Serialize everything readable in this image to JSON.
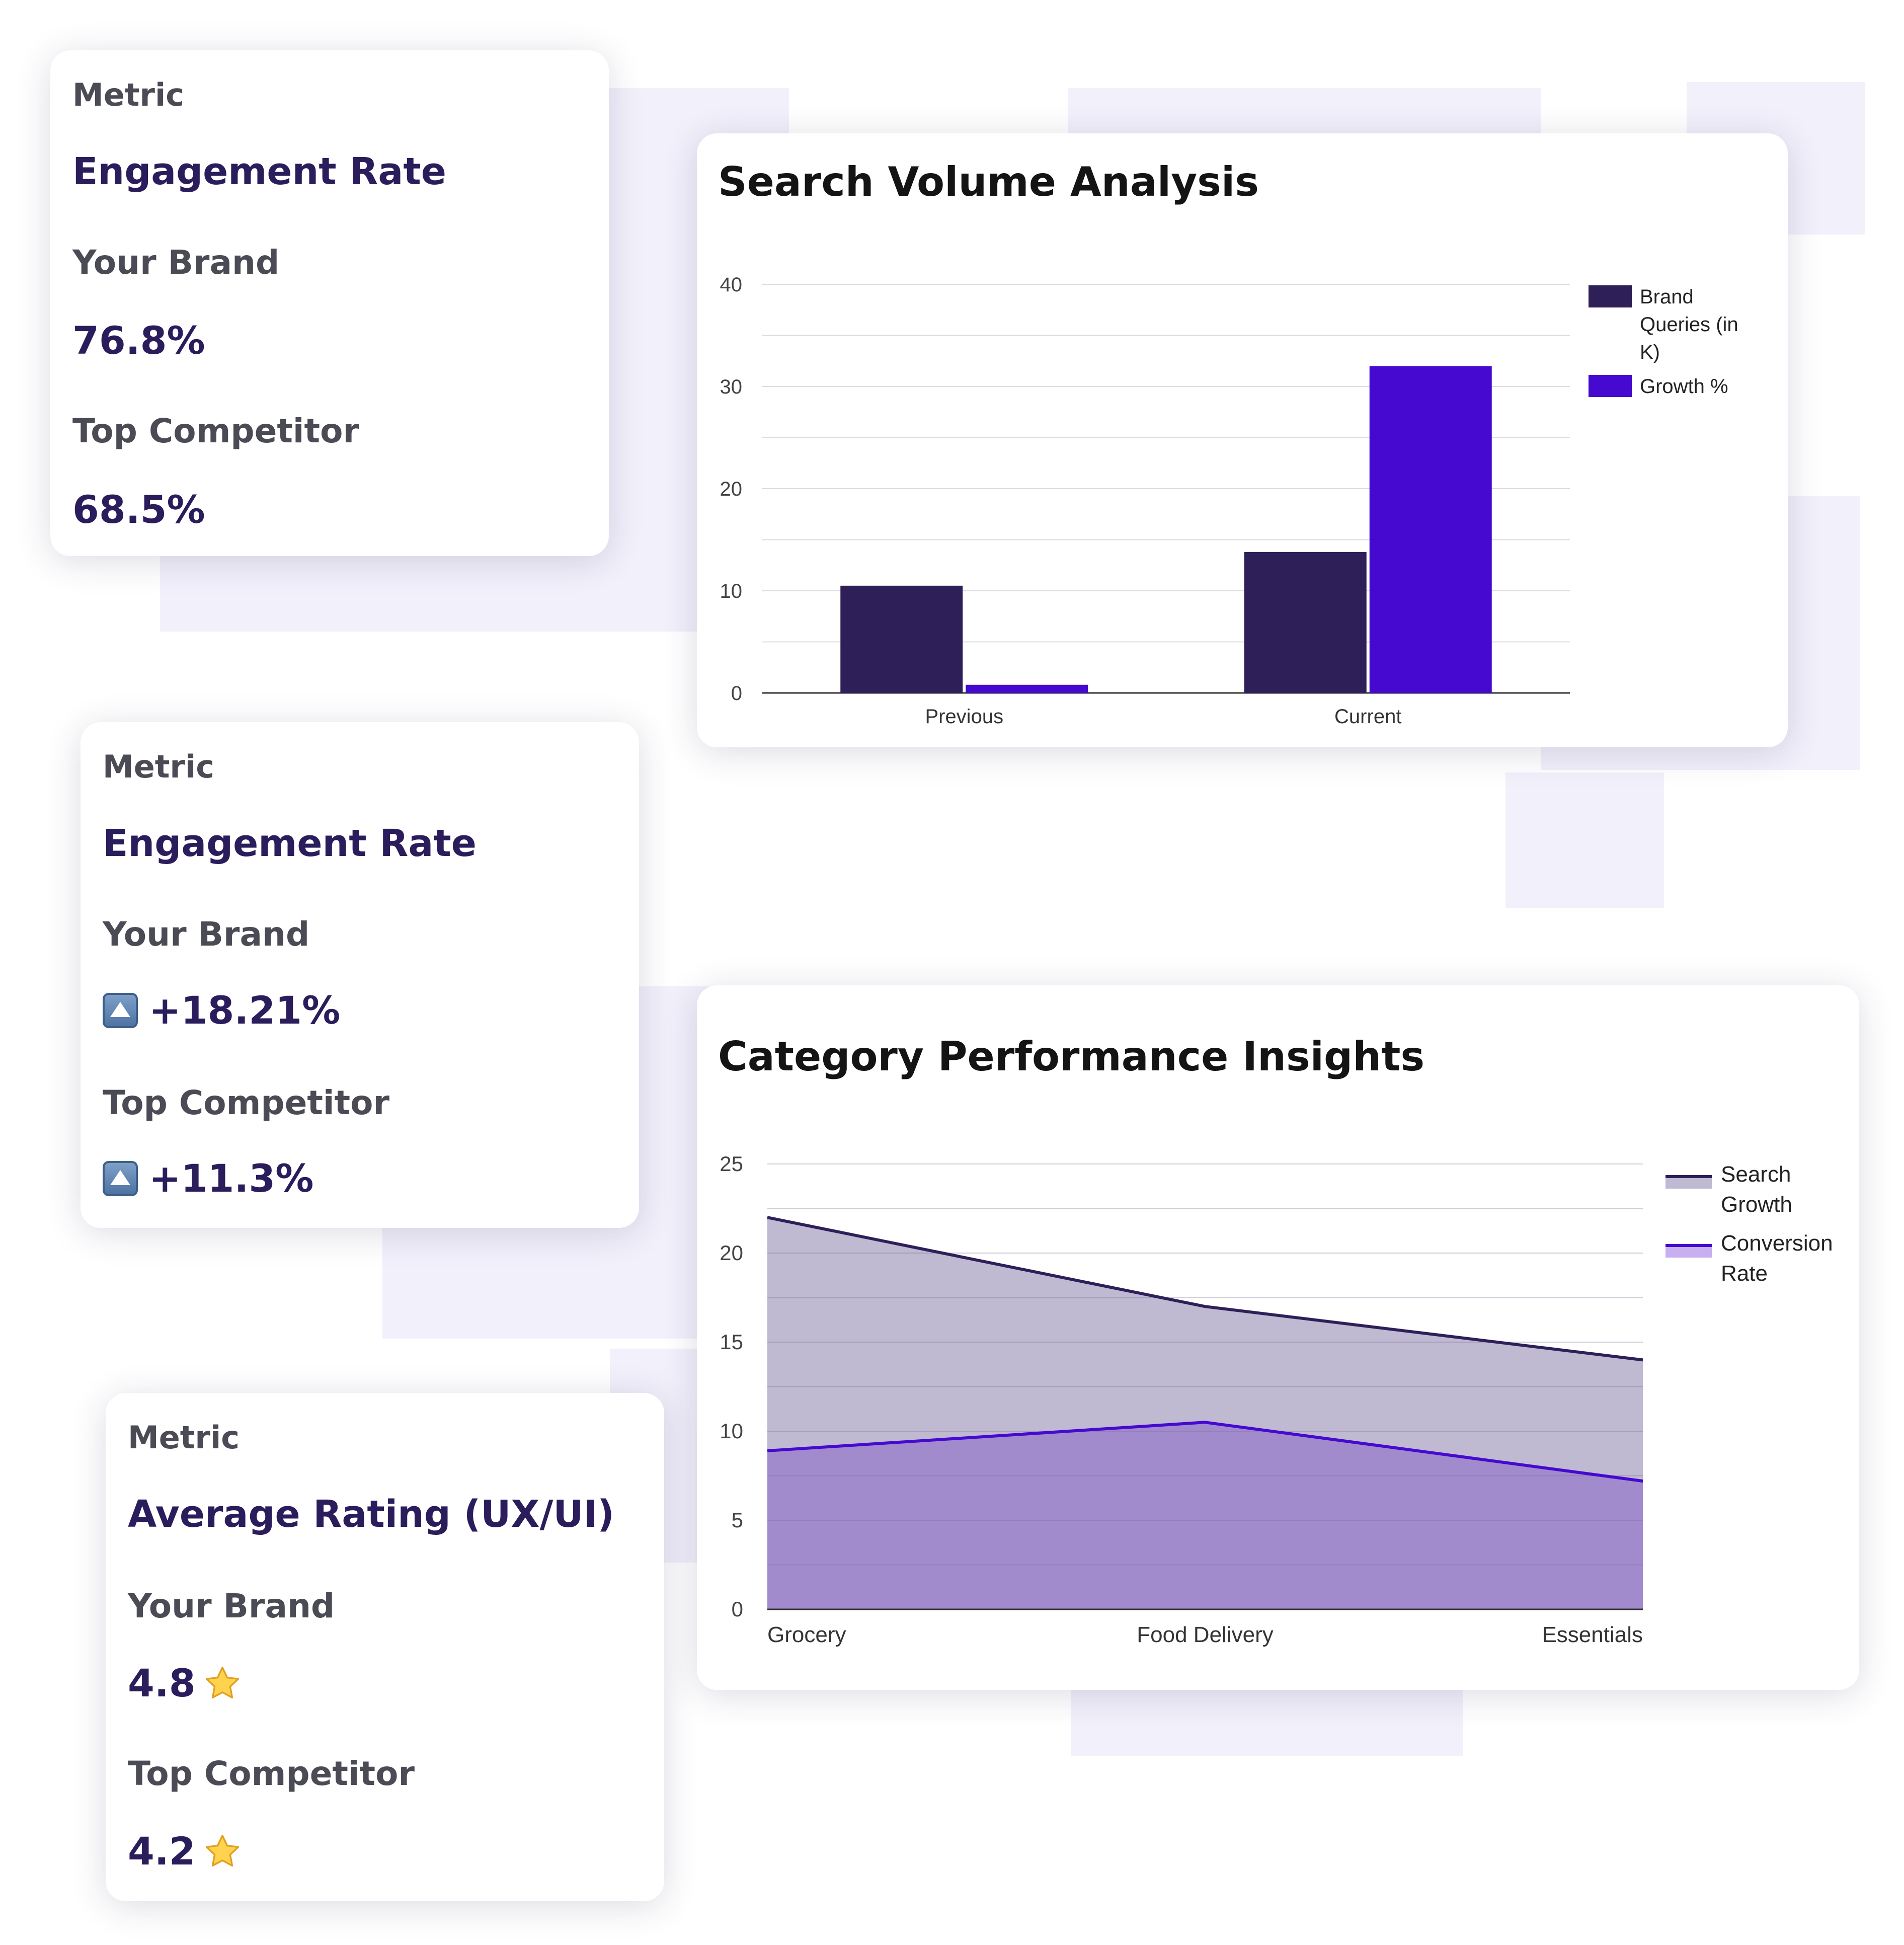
{
  "cards": [
    {
      "metric_label": "Metric",
      "title": "Engagement Rate",
      "brand_label": "Your Brand",
      "brand_value": "76.8%",
      "competitor_label": "Top Competitor",
      "competitor_value": "68.5%"
    },
    {
      "metric_label": "Metric",
      "title": "Engagement Rate",
      "brand_label": "Your Brand",
      "brand_value": "+18.21%",
      "competitor_label": "Top Competitor",
      "competitor_value": "+11.3%",
      "value_icon": "up-arrow-button-icon"
    },
    {
      "metric_label": "Metric",
      "title": "Average Rating (UX/UI)",
      "brand_label": "Your Brand",
      "brand_value": "4.8",
      "competitor_label": "Top Competitor",
      "competitor_value": "4.2",
      "value_icon": "star-icon"
    }
  ],
  "chart_data": [
    {
      "type": "bar",
      "title": "Search Volume Analysis",
      "categories": [
        "Previous",
        "Current"
      ],
      "series": [
        {
          "name": "Brand Queries (in K)",
          "values": [
            10.5,
            13.8
          ],
          "color": "#2e1f59"
        },
        {
          "name": "Growth %",
          "values": [
            0.8,
            32
          ],
          "color": "#4509d0"
        }
      ],
      "y_ticks": [
        "0",
        "10",
        "20",
        "30",
        "40"
      ],
      "ylim": [
        0,
        40
      ],
      "legend": {
        "position": "right",
        "entries": [
          "Brand",
          "Queries (in",
          "K)",
          "Growth %"
        ]
      },
      "grid": true
    },
    {
      "type": "area",
      "title": "Category Performance Insights",
      "categories": [
        "Grocery",
        "Food Delivery",
        "Essentials"
      ],
      "series": [
        {
          "name": "Search Growth",
          "values": [
            22,
            17,
            14
          ],
          "color": "#2e1f59",
          "fill": "#bfb9d2"
        },
        {
          "name": "Conversion Rate",
          "values": [
            8.9,
            10.5,
            7.2
          ],
          "color": "#4509d0",
          "fill": "#9c83cc"
        }
      ],
      "y_ticks": [
        "0",
        "5",
        "10",
        "15",
        "20",
        "25"
      ],
      "ylim": [
        0,
        25
      ],
      "legend": {
        "position": "right",
        "entries": [
          "Search",
          "Growth",
          "Conversion",
          "Rate"
        ]
      },
      "grid": true
    }
  ]
}
